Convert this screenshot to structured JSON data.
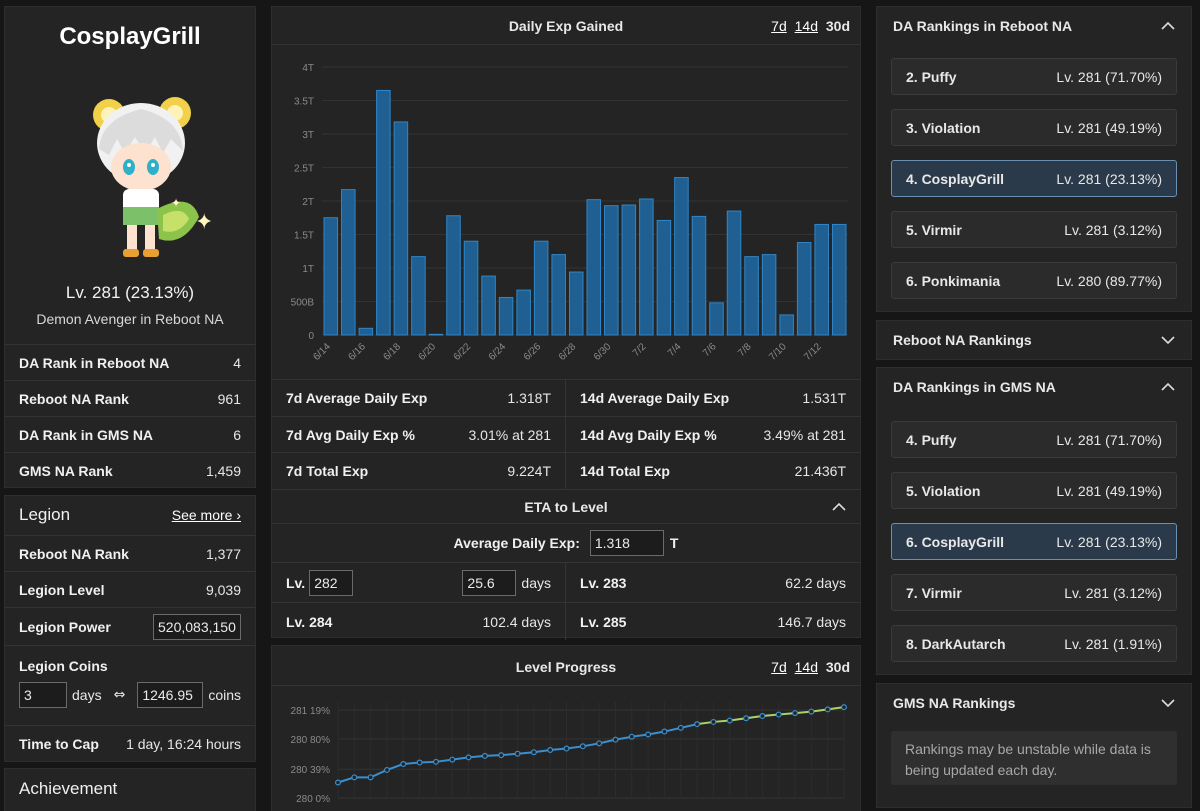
{
  "character": {
    "name": "CosplayGrill",
    "level_text": "Lv. 281 (23.13%)",
    "class_world": "Demon Avenger in Reboot NA",
    "ranks": [
      {
        "label": "DA Rank in Reboot NA",
        "value": "4"
      },
      {
        "label": "Reboot NA Rank",
        "value": "961"
      },
      {
        "label": "DA Rank in GMS NA",
        "value": "6"
      },
      {
        "label": "GMS NA Rank",
        "value": "1,459"
      }
    ]
  },
  "legion": {
    "title": "Legion",
    "see_more": "See more ›",
    "reboot_rank_label": "Reboot NA Rank",
    "reboot_rank_value": "1,377",
    "level_label": "Legion Level",
    "level_value": "9,039",
    "power_label": "Legion Power",
    "power_value": "520,083,150",
    "coins_label": "Legion Coins",
    "coins_days_value": "3",
    "coins_days_unit": "days",
    "swap_symbol": "⇔",
    "coins_value": "1246.95",
    "coins_unit": "coins",
    "cap_label": "Time to Cap",
    "cap_value": "1 day, 16:24 hours"
  },
  "achievement": {
    "title": "Achievement"
  },
  "exp_chart": {
    "title": "Daily Exp Gained",
    "tabs": [
      "7d",
      "14d",
      "30d"
    ],
    "active_tab": "30d"
  },
  "chart_data": [
    {
      "type": "bar",
      "title": "Daily Exp Gained",
      "categories": [
        "6/14",
        "6/15",
        "6/16",
        "6/17",
        "6/18",
        "6/19",
        "6/20",
        "6/21",
        "6/22",
        "6/23",
        "6/24",
        "6/25",
        "6/26",
        "6/27",
        "6/28",
        "6/29",
        "6/30",
        "7/1",
        "7/2",
        "7/3",
        "7/4",
        "7/5",
        "7/6",
        "7/7",
        "7/8",
        "7/9",
        "7/10",
        "7/11",
        "7/12",
        "7/13"
      ],
      "x_tick_labels": [
        "6/14",
        "6/16",
        "6/18",
        "6/20",
        "6/22",
        "6/24",
        "6/26",
        "6/28",
        "6/30",
        "7/2",
        "7/4",
        "7/6",
        "7/8",
        "7/10",
        "7/12"
      ],
      "values": [
        1.75,
        2.17,
        0.1,
        3.65,
        3.18,
        1.17,
        0.01,
        1.78,
        1.4,
        0.88,
        0.56,
        0.67,
        1.4,
        1.2,
        0.94,
        2.02,
        1.93,
        1.94,
        2.03,
        1.71,
        2.35,
        1.77,
        0.48,
        1.85,
        1.17,
        1.2,
        0.3,
        1.38,
        1.65,
        1.65
      ],
      "y_tick_labels": [
        "0",
        "500B",
        "1T",
        "1.5T",
        "2T",
        "2.5T",
        "3T",
        "3.5T",
        "4T"
      ],
      "ylim": [
        0,
        4
      ],
      "y_unit": "T",
      "color": "#2f86c9",
      "grid": true
    },
    {
      "type": "line",
      "title": "Level Progress",
      "values": [
        280.21,
        280.28,
        280.28,
        280.38,
        280.46,
        280.48,
        280.49,
        280.52,
        280.55,
        280.57,
        280.58,
        280.6,
        280.62,
        280.65,
        280.67,
        280.7,
        280.74,
        280.79,
        280.83,
        280.86,
        280.9,
        280.95,
        281.0,
        281.03,
        281.05,
        281.08,
        281.11,
        281.13,
        281.15,
        281.17,
        281.2,
        281.23
      ],
      "y_tick_labels": [
        "281 19%",
        "280 80%",
        "280 39%",
        "280 0%"
      ],
      "ylim": [
        280.0,
        281.3
      ],
      "color": "#3a8fd0",
      "recent_color": "#a8d26a",
      "grid": true
    }
  ],
  "stats": [
    {
      "label": "7d Average Daily Exp",
      "value": "1.318T"
    },
    {
      "label": "14d Average Daily Exp",
      "value": "1.531T"
    },
    {
      "label": "7d Avg Daily Exp %",
      "value": "3.01% at 281"
    },
    {
      "label": "14d Avg Daily Exp %",
      "value": "3.49% at 281"
    },
    {
      "label": "7d Total Exp",
      "value": "9.224T"
    },
    {
      "label": "14d Total Exp",
      "value": "21.436T"
    }
  ],
  "eta": {
    "title": "ETA to Level",
    "avg_label": "Average Daily Exp:",
    "avg_value": "1.318",
    "avg_unit": "T",
    "lv_label": "Lv.",
    "lv_input": "282",
    "days_input": "25.6",
    "days_unit": "days",
    "rows": [
      {
        "label": "Lv. 283",
        "value": "62.2 days"
      },
      {
        "label": "Lv. 284",
        "value": "102.4 days"
      },
      {
        "label": "Lv. 285",
        "value": "146.7 days"
      }
    ]
  },
  "level_progress": {
    "title": "Level Progress",
    "tabs": [
      "7d",
      "14d",
      "30d"
    ],
    "active_tab": "30d"
  },
  "rankings_reboot": {
    "title": "DA Rankings in Reboot NA",
    "items": [
      {
        "name": "2. Puffy",
        "level": "Lv. 281 (71.70%)"
      },
      {
        "name": "3. Violation",
        "level": "Lv. 281 (49.19%)"
      },
      {
        "name": "4. CosplayGrill",
        "level": "Lv. 281 (23.13%)"
      },
      {
        "name": "5. Virmir",
        "level": "Lv. 281 (3.12%)"
      },
      {
        "name": "6. Ponkimania",
        "level": "Lv. 280 (89.77%)"
      }
    ]
  },
  "reboot_na_rankings": {
    "title": "Reboot NA Rankings"
  },
  "rankings_gms": {
    "title": "DA Rankings in GMS NA",
    "items": [
      {
        "name": "4. Puffy",
        "level": "Lv. 281 (71.70%)"
      },
      {
        "name": "5. Violation",
        "level": "Lv. 281 (49.19%)"
      },
      {
        "name": "6. CosplayGrill",
        "level": "Lv. 281 (23.13%)"
      },
      {
        "name": "7. Virmir",
        "level": "Lv. 281 (3.12%)"
      },
      {
        "name": "8. DarkAutarch",
        "level": "Lv. 281 (1.91%)"
      }
    ]
  },
  "gms_na_rankings": {
    "title": "GMS NA Rankings"
  },
  "notice": "Rankings may be unstable while data is being updated each day."
}
